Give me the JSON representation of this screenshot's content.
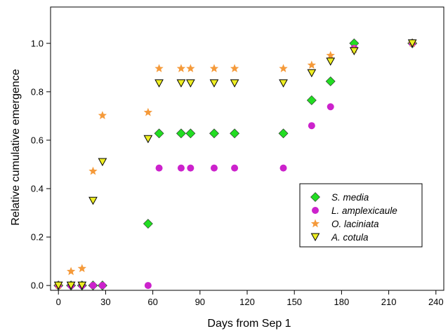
{
  "chart_data": {
    "type": "scatter",
    "xlabel": "Days from Sep 1",
    "ylabel": "Relative cumulative emergence",
    "xlim": [
      -5,
      245
    ],
    "ylim": [
      -0.02,
      1.15
    ],
    "xticks": [
      0,
      30,
      60,
      90,
      120,
      150,
      180,
      210,
      240
    ],
    "yticks": [
      0.0,
      0.2,
      0.4,
      0.6,
      0.8,
      1.0
    ],
    "xtick_labels": [
      "0",
      "30",
      "60",
      "90",
      "120",
      "150",
      "180",
      "210",
      "240"
    ],
    "ytick_labels": [
      "0.0",
      "0.2",
      "0.4",
      "0.6",
      "0.8",
      "1.0"
    ],
    "grid": false,
    "legend_position": "lower-right",
    "series": [
      {
        "name": "S. media",
        "marker": "diamond",
        "color": "#22dd22",
        "x": [
          0,
          8,
          15,
          22,
          28,
          57,
          64,
          78,
          84,
          99,
          112,
          143,
          161,
          173,
          188,
          225
        ],
        "y": [
          0,
          0,
          0,
          0,
          0,
          0.255,
          0.628,
          0.628,
          0.628,
          0.628,
          0.628,
          0.628,
          0.765,
          0.843,
          1.0,
          1.0
        ]
      },
      {
        "name": "L. amplexicaule",
        "marker": "circle",
        "color": "#cc22cc",
        "x": [
          0,
          8,
          15,
          22,
          28,
          57,
          64,
          78,
          84,
          99,
          112,
          143,
          161,
          173,
          188,
          225
        ],
        "y": [
          0,
          0,
          0,
          0,
          0,
          0,
          0.485,
          0.485,
          0.485,
          0.485,
          0.485,
          0.485,
          0.66,
          0.738,
          0.98,
          1.0
        ]
      },
      {
        "name": "O. laciniata",
        "marker": "star",
        "color": "#f59a3a",
        "x": [
          0,
          8,
          15,
          22,
          28,
          57,
          64,
          78,
          84,
          99,
          112,
          143,
          161,
          173,
          188,
          225
        ],
        "y": [
          0,
          0.058,
          0.07,
          0.472,
          0.702,
          0.715,
          0.896,
          0.896,
          0.896,
          0.896,
          0.896,
          0.896,
          0.91,
          0.95,
          0.975,
          1.0
        ]
      },
      {
        "name": "A. cotula",
        "marker": "triangle-down",
        "color": "#eeee22",
        "x": [
          0,
          8,
          15,
          22,
          28,
          57,
          64,
          78,
          84,
          99,
          112,
          143,
          161,
          173,
          188,
          225
        ],
        "y": [
          0,
          0,
          0,
          0.35,
          0.51,
          0.605,
          0.835,
          0.835,
          0.835,
          0.835,
          0.835,
          0.835,
          0.877,
          0.925,
          0.968,
          1.0
        ]
      }
    ]
  }
}
